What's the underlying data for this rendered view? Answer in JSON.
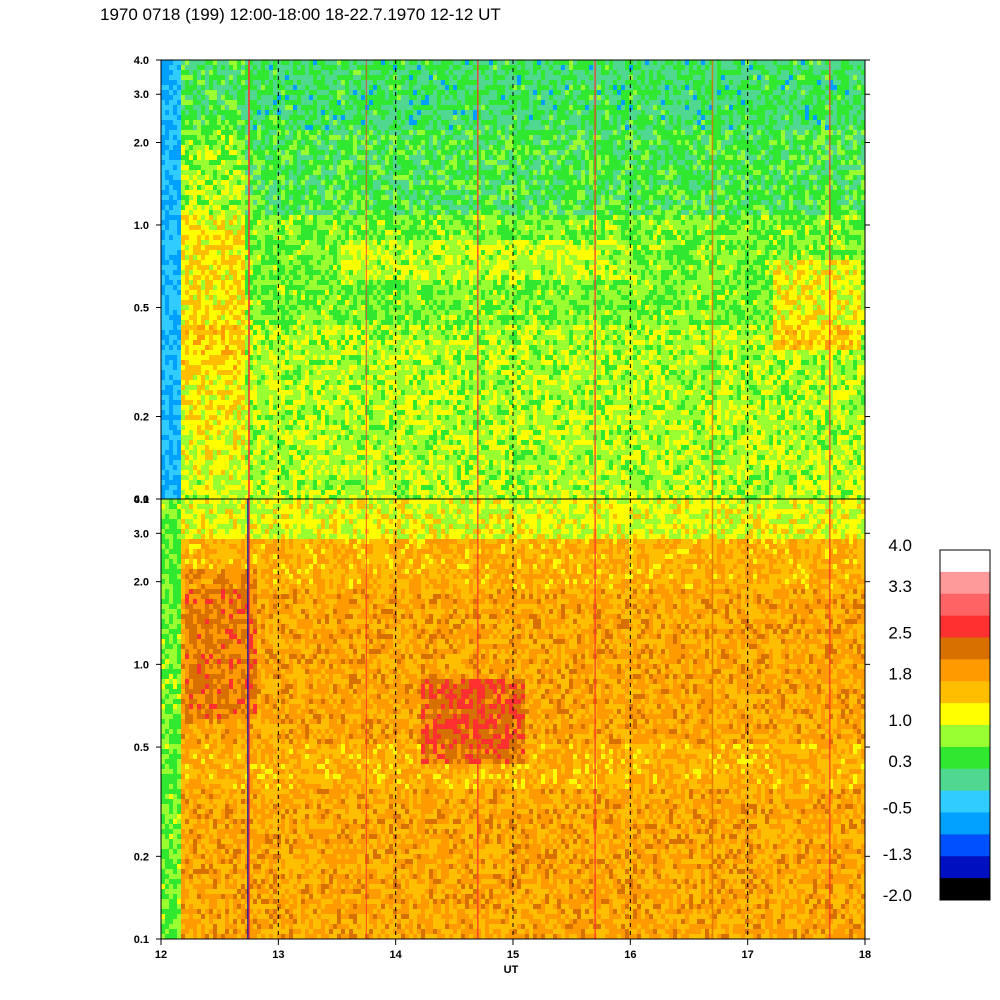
{
  "title": "1970 0718 (199) 12:00-18:00 18-22.7.1970  12-12 UT",
  "chart_data": [
    {
      "type": "heatmap",
      "panel": "upper",
      "xlabel": "",
      "ylabel": "",
      "xlim": [
        12,
        18
      ],
      "ylim": [
        0.1,
        4.0
      ],
      "yscale": "log",
      "xticks": [
        "12",
        "13",
        "14",
        "15",
        "16",
        "17",
        "18"
      ],
      "yticks": [
        {
          "value": 0.1,
          "label": "0.1"
        },
        {
          "value": 0.2,
          "label": "0.2"
        },
        {
          "value": 0.5,
          "label": "0.5"
        },
        {
          "value": 1.0,
          "label": "1.0"
        },
        {
          "value": 2.0,
          "label": "2.0"
        },
        {
          "value": 3.0,
          "label": "3.0"
        },
        {
          "value": 4.0,
          "label": "4.0"
        }
      ],
      "grid": "dashed vertical lines at each hour"
    },
    {
      "type": "heatmap",
      "panel": "lower",
      "xlabel": "UT",
      "ylabel": "",
      "xlim": [
        12,
        18
      ],
      "ylim": [
        0.1,
        4.0
      ],
      "yscale": "log",
      "xticks": [
        "12",
        "13",
        "14",
        "15",
        "16",
        "17",
        "18"
      ],
      "yticks": [
        {
          "value": 0.1,
          "label": "0.1"
        },
        {
          "value": 0.2,
          "label": "0.2"
        },
        {
          "value": 0.5,
          "label": "0.5"
        },
        {
          "value": 1.0,
          "label": "1.0"
        },
        {
          "value": 2.0,
          "label": "2.0"
        },
        {
          "value": 3.0,
          "label": "3.0"
        },
        {
          "value": 4.0,
          "label": "4.0"
        }
      ],
      "grid": "dashed vertical lines at each hour"
    }
  ],
  "colorbar": {
    "range": [
      -2.0,
      4.0
    ],
    "tick_labels": [
      "4.0",
      "3.3",
      "2.5",
      "1.8",
      "1.0",
      "0.3",
      "-0.5",
      "-1.3",
      "-2.0"
    ],
    "colors_top_to_bottom": [
      "#ffffff",
      "#ff9a9a",
      "#ff6464",
      "#ff3030",
      "#d87000",
      "#ff9a00",
      "#ffbe00",
      "#ffff00",
      "#9aff30",
      "#30e830",
      "#50d890",
      "#30ccff",
      "#00a0ff",
      "#0050ff",
      "#0010c0",
      "#000000"
    ]
  },
  "palette": {
    "upper_panel": [
      "#30ccff",
      "#00a0ff",
      "#50d890",
      "#30e830",
      "#9aff30",
      "#ffff00",
      "#ffbe00",
      "#ff9a00",
      "#ff3030"
    ],
    "lower_panel": [
      "#30e830",
      "#9aff30",
      "#ffff00",
      "#ffbe00",
      "#ff9a00",
      "#d87000",
      "#ff3030",
      "#0010c0"
    ]
  }
}
